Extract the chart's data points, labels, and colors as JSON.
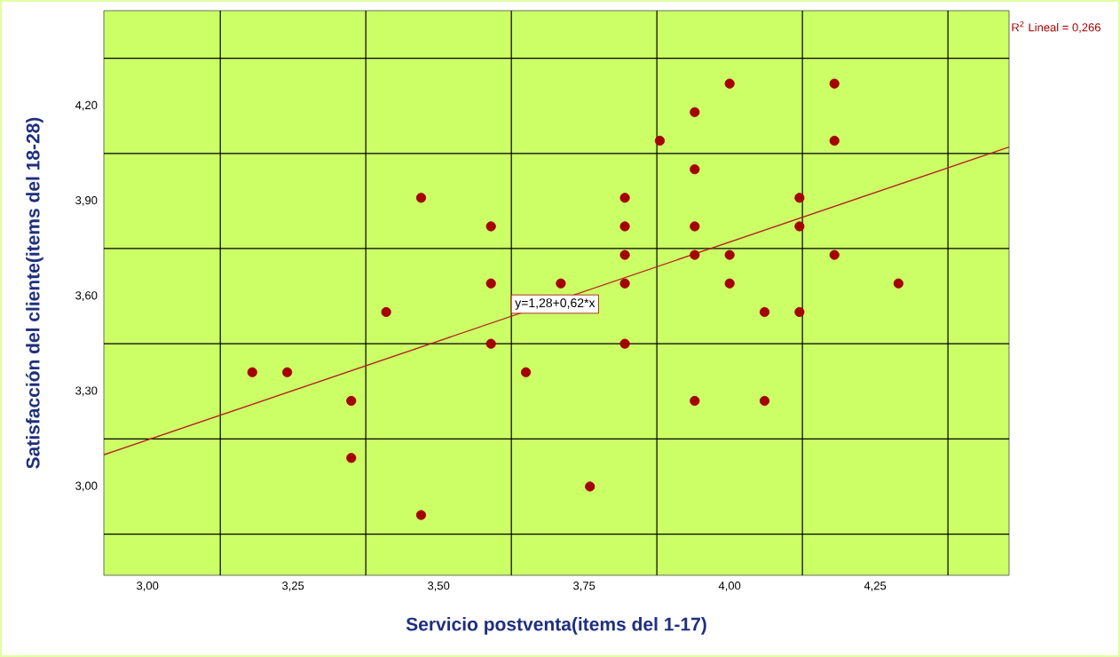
{
  "chart_data": {
    "type": "scatter",
    "xlabel": "Servicio postventa(items del 1-17)",
    "ylabel": "Satisfacción del cliente(items del 18-28)",
    "xlim": [
      2.925,
      4.48
    ],
    "ylim": [
      2.72,
      4.5
    ],
    "xticks": [
      {
        "value": 3.0,
        "label": "3,00"
      },
      {
        "value": 3.25,
        "label": "3,25"
      },
      {
        "value": 3.5,
        "label": "3,50"
      },
      {
        "value": 3.75,
        "label": "3,75"
      },
      {
        "value": 4.0,
        "label": "4,00"
      },
      {
        "value": 4.25,
        "label": "4,25"
      },
      {
        "value": 3.125,
        "label": null
      },
      {
        "value": 3.375,
        "label": null
      },
      {
        "value": 3.625,
        "label": null
      },
      {
        "value": 3.875,
        "label": null
      },
      {
        "value": 4.125,
        "label": null
      },
      {
        "value": 4.375,
        "label": null
      }
    ],
    "yticks": [
      {
        "value": 3.0,
        "label": "3,00"
      },
      {
        "value": 3.3,
        "label": "3,30"
      },
      {
        "value": 3.6,
        "label": "3,60"
      },
      {
        "value": 3.9,
        "label": "3,90"
      },
      {
        "value": 4.2,
        "label": "4,20"
      },
      {
        "value": 2.85,
        "label": null
      },
      {
        "value": 3.15,
        "label": null
      },
      {
        "value": 3.45,
        "label": null
      },
      {
        "value": 3.75,
        "label": null
      },
      {
        "value": 4.05,
        "label": null
      },
      {
        "value": 4.35,
        "label": null
      }
    ],
    "grid": true,
    "series": [
      {
        "color": "#a50000",
        "marker": "circle",
        "x": [
          3.18,
          3.24,
          3.35,
          3.35,
          3.41,
          3.47,
          3.47,
          3.59,
          3.59,
          3.59,
          3.65,
          3.71,
          3.76,
          3.82,
          3.82,
          3.82,
          3.82,
          3.82,
          3.88,
          3.94,
          3.94,
          3.94,
          3.94,
          3.94,
          4.0,
          4.0,
          4.0,
          4.06,
          4.06,
          4.12,
          4.12,
          4.12,
          4.18,
          4.18,
          4.18,
          4.29
        ],
        "values": [
          3.36,
          3.36,
          3.27,
          3.09,
          3.55,
          3.91,
          2.91,
          3.82,
          3.64,
          3.45,
          3.36,
          3.64,
          3.0,
          3.91,
          3.82,
          3.73,
          3.64,
          3.45,
          4.09,
          4.18,
          4.0,
          3.82,
          3.73,
          3.27,
          4.27,
          3.73,
          3.64,
          3.55,
          3.27,
          3.91,
          3.82,
          3.55,
          4.27,
          4.09,
          3.73,
          3.64
        ]
      },
      {
        "type": "line",
        "color": "#b22222",
        "x": [
          2.925,
          4.48
        ],
        "values": [
          3.1,
          4.07
        ],
        "line_style": "solid",
        "marker": "none"
      }
    ],
    "annotations": [
      "R$^{2}$ Lineal = 0,266",
      {
        "text": "y=1,28+0,62*x",
        "x": 3.7,
        "y": 3.575
      }
    ]
  }
}
